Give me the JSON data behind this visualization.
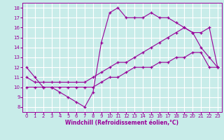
{
  "xlabel": "Windchill (Refroidissement éolien,°C)",
  "xlim": [
    -0.5,
    23.5
  ],
  "ylim": [
    7.5,
    18.5
  ],
  "xticks": [
    0,
    1,
    2,
    3,
    4,
    5,
    6,
    7,
    8,
    9,
    10,
    11,
    12,
    13,
    14,
    15,
    16,
    17,
    18,
    19,
    20,
    21,
    22,
    23
  ],
  "yticks": [
    8,
    9,
    10,
    11,
    12,
    13,
    14,
    15,
    16,
    17,
    18
  ],
  "bg_color": "#c8ece9",
  "grid_color": "#ffffff",
  "line_color": "#990099",
  "line1_x": [
    0,
    1,
    2,
    3,
    4,
    5,
    6,
    7,
    8,
    9,
    10,
    11,
    12,
    13,
    14,
    15,
    16,
    17,
    18,
    19,
    20,
    21,
    22,
    23
  ],
  "line1_y": [
    12,
    11,
    10,
    10,
    9.5,
    9,
    8.5,
    8,
    9.5,
    14.5,
    17.5,
    18,
    17,
    17,
    17,
    17.5,
    17,
    17,
    16.5,
    16,
    15.5,
    14,
    13,
    12
  ],
  "line2_x": [
    0,
    1,
    2,
    3,
    4,
    5,
    6,
    7,
    8,
    9,
    10,
    11,
    12,
    13,
    14,
    15,
    16,
    17,
    18,
    19,
    20,
    21,
    22,
    23
  ],
  "line2_y": [
    11,
    10.5,
    10.5,
    10.5,
    10.5,
    10.5,
    10.5,
    10.5,
    11,
    11.5,
    12,
    12.5,
    12.5,
    13,
    13.5,
    14,
    14.5,
    15,
    15.5,
    16,
    15.5,
    15.5,
    16,
    12
  ],
  "line3_x": [
    0,
    1,
    2,
    3,
    4,
    5,
    6,
    7,
    8,
    9,
    10,
    11,
    12,
    13,
    14,
    15,
    16,
    17,
    18,
    19,
    20,
    21,
    22,
    23
  ],
  "line3_y": [
    10,
    10,
    10,
    10,
    10,
    10,
    10,
    10,
    10,
    10.5,
    11,
    11,
    11.5,
    12,
    12,
    12,
    12.5,
    12.5,
    13,
    13,
    13.5,
    13.5,
    12,
    12
  ]
}
